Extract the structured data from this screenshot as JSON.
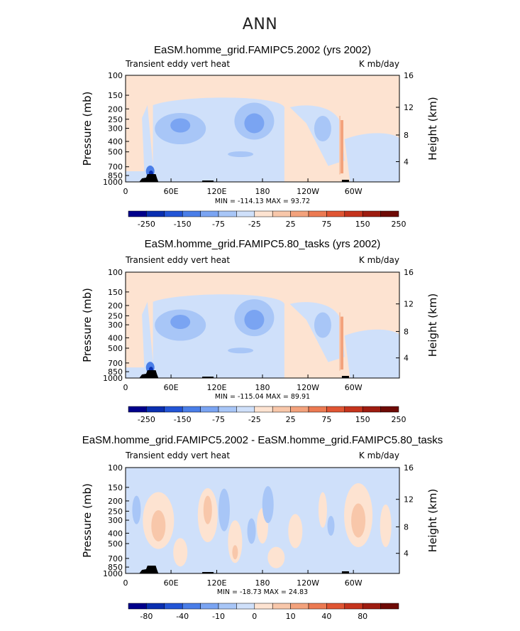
{
  "figure_title": "ANN",
  "chart_data": [
    {
      "type": "heatmap",
      "title": "EaSM.homme_grid.FAMIPC5.2002 (yrs 2002)",
      "left_label": "Transient eddy vert heat",
      "units": "K mb/day",
      "ylabel": "Pressure (mb)",
      "ylabel_right": "Height (km)",
      "x_ticks": [
        "0",
        "60E",
        "120E",
        "180",
        "120W",
        "60W"
      ],
      "y_ticks": [
        "100",
        "150",
        "200",
        "250",
        "300",
        "400",
        "500",
        "700",
        "850",
        "1000"
      ],
      "y_ticks_right": [
        "16",
        "12",
        "8",
        "4"
      ],
      "min_max": "MIN = -114.13   MAX =  93.72",
      "colorbar_levels": [
        "-250",
        "-150",
        "-75",
        "-25",
        "25",
        "75",
        "150",
        "250"
      ],
      "colorbar_colors": [
        "#00008b",
        "#0a2fb0",
        "#2355d6",
        "#4a7ee8",
        "#7aa4f2",
        "#a8c6f7",
        "#cfe0fa",
        "#fde3d1",
        "#f8c7aa",
        "#f3a27c",
        "#ec7a52",
        "#e05533",
        "#c5341d",
        "#9e1c10",
        "#6e0a05"
      ]
    },
    {
      "type": "heatmap",
      "title": "EaSM.homme_grid.FAMIPC5.80_tasks (yrs 2002)",
      "left_label": "Transient eddy vert heat",
      "units": "K mb/day",
      "ylabel": "Pressure (mb)",
      "ylabel_right": "Height (km)",
      "x_ticks": [
        "0",
        "60E",
        "120E",
        "180",
        "120W",
        "60W"
      ],
      "y_ticks": [
        "100",
        "150",
        "200",
        "250",
        "300",
        "400",
        "500",
        "700",
        "850",
        "1000"
      ],
      "y_ticks_right": [
        "16",
        "12",
        "8",
        "4"
      ],
      "min_max": "MIN = -115.04   MAX =  89.91",
      "colorbar_levels": [
        "-250",
        "-150",
        "-75",
        "-25",
        "25",
        "75",
        "150",
        "250"
      ],
      "colorbar_colors": [
        "#00008b",
        "#0a2fb0",
        "#2355d6",
        "#4a7ee8",
        "#7aa4f2",
        "#a8c6f7",
        "#cfe0fa",
        "#fde3d1",
        "#f8c7aa",
        "#f3a27c",
        "#ec7a52",
        "#e05533",
        "#c5341d",
        "#9e1c10",
        "#6e0a05"
      ]
    },
    {
      "type": "heatmap",
      "title": "EaSM.homme_grid.FAMIPC5.2002 - EaSM.homme_grid.FAMIPC5.80_tasks",
      "left_label": "Transient eddy vert heat",
      "units": "K mb/day",
      "ylabel": "Pressure (mb)",
      "ylabel_right": "Height (km)",
      "x_ticks": [
        "0",
        "60E",
        "120E",
        "180",
        "120W",
        "60W"
      ],
      "y_ticks": [
        "100",
        "150",
        "200",
        "250",
        "300",
        "400",
        "500",
        "700",
        "850",
        "1000"
      ],
      "y_ticks_right": [
        "16",
        "12",
        "8",
        "4"
      ],
      "min_max": "MIN = -18.73   MAX =  24.83",
      "colorbar_levels": [
        "-80",
        "-40",
        "-10",
        "0",
        "10",
        "40",
        "80"
      ],
      "colorbar_colors": [
        "#00008b",
        "#0a2fb0",
        "#2355d6",
        "#4a7ee8",
        "#7aa4f2",
        "#a8c6f7",
        "#cfe0fa",
        "#fde3d1",
        "#f8c7aa",
        "#f3a27c",
        "#ec7a52",
        "#e05533",
        "#c5341d",
        "#9e1c10",
        "#6e0a05"
      ]
    }
  ]
}
